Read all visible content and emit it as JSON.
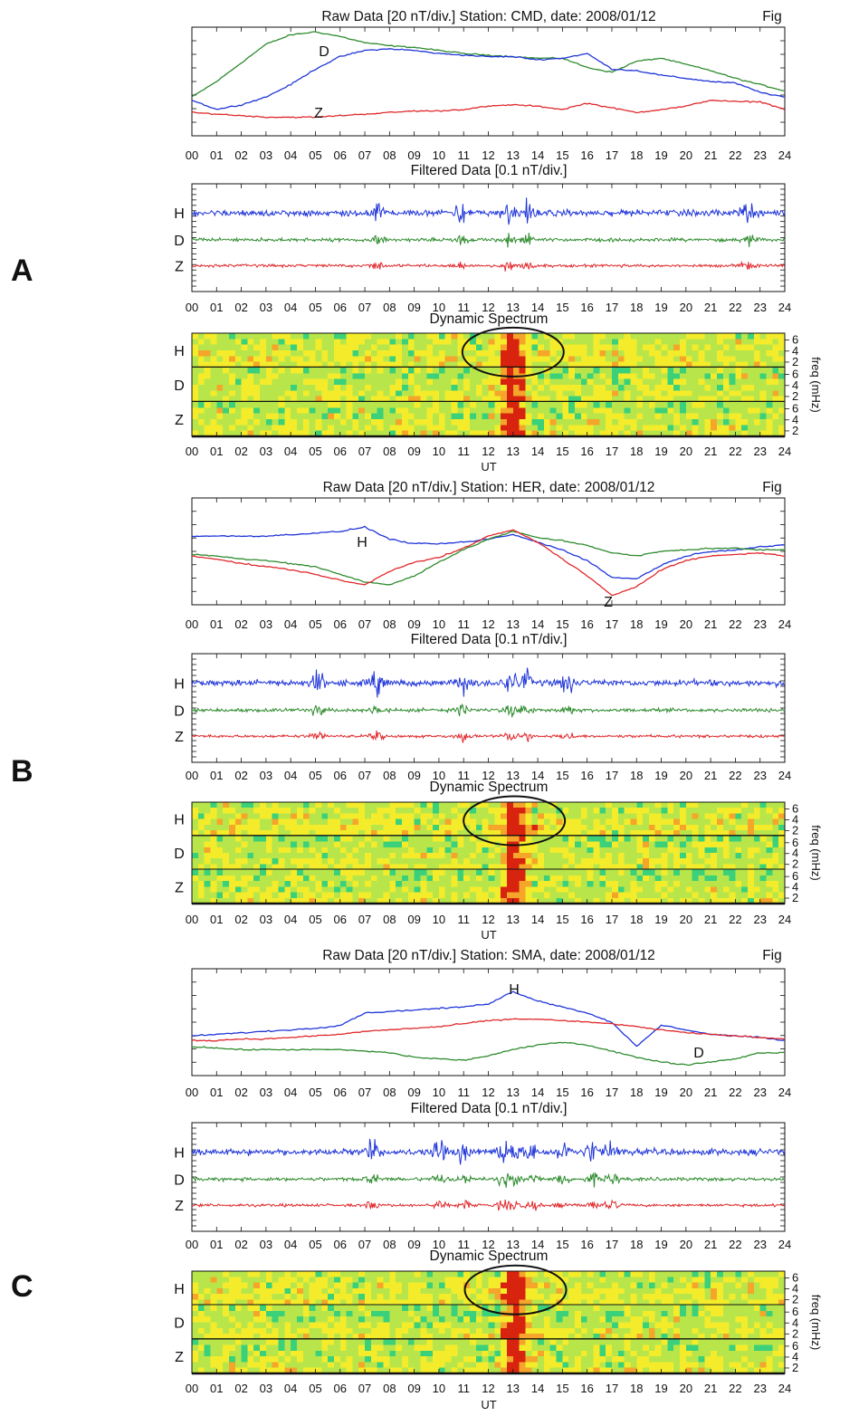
{
  "colors": {
    "H": "#1f35d8",
    "D": "#2e8b2e",
    "Z": "#e0282b",
    "spectrum_low": "#3ad17a",
    "spectrum_mid": "#f4ec2a",
    "spectrum_high": "#d8230f"
  },
  "chart_data": [
    {
      "panel": "A",
      "station": "CMD",
      "raw": {
        "type": "line",
        "title": "Raw Data [20 nT/div.] Station: CMD, date: 2008/01/12",
        "corner_text": "Fig",
        "x": [
          0,
          1,
          2,
          3,
          4,
          5,
          6,
          7,
          8,
          9,
          10,
          11,
          12,
          13,
          14,
          15,
          16,
          17,
          18,
          19,
          20,
          21,
          22,
          23,
          24
        ],
        "xlabels": [
          "00",
          "01",
          "02",
          "03",
          "04",
          "05",
          "06",
          "07",
          "08",
          "09",
          "10",
          "11",
          "12",
          "13",
          "14",
          "15",
          "16",
          "17",
          "18",
          "19",
          "20",
          "21",
          "22",
          "23",
          "24"
        ],
        "annotations": [
          {
            "text": "D",
            "series": "D"
          },
          {
            "text": "Z",
            "series": "Z"
          }
        ],
        "series": [
          {
            "key": "D",
            "values": [
              -1.0,
              0.0,
              1.2,
              2.4,
              3.0,
              3.2,
              2.9,
              2.5,
              2.3,
              2.2,
              2.0,
              1.8,
              1.7,
              1.6,
              1.5,
              1.5,
              0.9,
              0.6,
              1.3,
              1.5,
              1.1,
              0.7,
              0.2,
              -0.2,
              -0.6
            ]
          },
          {
            "key": "H",
            "values": [
              -1.2,
              -1.8,
              -1.5,
              -1.0,
              -0.2,
              0.8,
              1.6,
              2.0,
              2.1,
              2.0,
              1.8,
              1.7,
              1.6,
              1.6,
              1.4,
              1.5,
              1.8,
              0.8,
              0.7,
              0.4,
              0.2,
              0.0,
              -0.1,
              -0.7,
              -1.0
            ]
          },
          {
            "key": "Z",
            "values": [
              -2.0,
              -2.1,
              -2.2,
              -2.3,
              -2.3,
              -2.3,
              -2.2,
              -2.1,
              -2.0,
              -1.9,
              -1.9,
              -1.8,
              -1.6,
              -1.5,
              -1.6,
              -1.8,
              -1.4,
              -1.7,
              -2.0,
              -1.8,
              -1.6,
              -1.2,
              -1.3,
              -1.3,
              -1.8
            ]
          }
        ]
      },
      "filtered": {
        "type": "line",
        "title": "Filtered Data [0.1 nT/div.]",
        "channel_labels": [
          "H",
          "D",
          "Z"
        ],
        "activity_peaks_hours": [
          7.5,
          10.9,
          12.8,
          13.6,
          22.5
        ]
      },
      "spectrum": {
        "type": "heatmap",
        "title": "Dynamic Spectrum",
        "channel_labels": [
          "H",
          "D",
          "Z"
        ],
        "freq_ticks": [
          "6",
          "4",
          "2"
        ],
        "freq_label": "freq (mHz)",
        "xlabel": "UT",
        "highlight_hours": [
          12.8,
          13.2
        ]
      }
    },
    {
      "panel": "B",
      "station": "HER",
      "raw": {
        "type": "line",
        "title": "Raw Data [20 nT/div.] Station: HER, date: 2008/01/12",
        "corner_text": "Fig",
        "x": [
          0,
          1,
          2,
          3,
          4,
          5,
          6,
          7,
          8,
          9,
          10,
          11,
          12,
          13,
          14,
          15,
          16,
          17,
          18,
          19,
          20,
          21,
          22,
          23,
          24
        ],
        "xlabels": [
          "00",
          "01",
          "02",
          "03",
          "04",
          "05",
          "06",
          "07",
          "08",
          "09",
          "10",
          "11",
          "12",
          "13",
          "14",
          "15",
          "16",
          "17",
          "18",
          "19",
          "20",
          "21",
          "22",
          "23",
          "24"
        ],
        "annotations": [
          {
            "text": "H",
            "series": "H"
          },
          {
            "text": "Z",
            "series": "Z"
          }
        ],
        "series": [
          {
            "key": "H",
            "values": [
              1.0,
              1.0,
              1.0,
              1.0,
              1.1,
              1.2,
              1.3,
              1.6,
              0.8,
              0.5,
              0.5,
              0.6,
              0.8,
              1.1,
              0.6,
              0.1,
              -0.6,
              -1.7,
              -1.8,
              -0.9,
              -0.3,
              0.0,
              0.1,
              0.3,
              0.4
            ]
          },
          {
            "key": "D",
            "values": [
              -0.2,
              -0.3,
              -0.5,
              -0.6,
              -0.8,
              -1.0,
              -1.5,
              -2.0,
              -2.2,
              -1.6,
              -0.7,
              0.1,
              0.8,
              1.3,
              0.9,
              0.7,
              0.4,
              -0.1,
              -0.3,
              0.0,
              0.1,
              0.2,
              0.2,
              0.1,
              0.1
            ]
          },
          {
            "key": "Z",
            "values": [
              -0.3,
              -0.5,
              -0.8,
              -1.0,
              -1.2,
              -1.5,
              -1.9,
              -2.2,
              -1.3,
              -0.7,
              -0.4,
              0.2,
              1.0,
              1.4,
              0.6,
              -0.5,
              -1.6,
              -2.9,
              -2.3,
              -1.2,
              -0.6,
              -0.3,
              -0.2,
              -0.1,
              -0.3
            ]
          }
        ]
      },
      "filtered": {
        "type": "line",
        "title": "Filtered Data [0.1 nT/div.]",
        "channel_labels": [
          "H",
          "D",
          "Z"
        ],
        "activity_peaks_hours": [
          5.1,
          7.5,
          11.0,
          12.9,
          13.5,
          15.2
        ]
      },
      "spectrum": {
        "type": "heatmap",
        "title": "Dynamic Spectrum",
        "channel_labels": [
          "H",
          "D",
          "Z"
        ],
        "freq_ticks": [
          "6",
          "4",
          "2"
        ],
        "freq_label": "freq (mHz)",
        "xlabel": "UT",
        "highlight_hours": [
          12.8,
          13.3
        ]
      }
    },
    {
      "panel": "C",
      "station": "SMA",
      "raw": {
        "type": "line",
        "title": "Raw Data [20 nT/div.] Station: SMA, date: 2008/01/12",
        "corner_text": "Fig",
        "x": [
          0,
          1,
          2,
          3,
          4,
          5,
          6,
          7,
          8,
          9,
          10,
          11,
          12,
          13,
          14,
          15,
          16,
          17,
          18,
          19,
          20,
          21,
          22,
          23,
          24
        ],
        "xlabels": [
          "00",
          "01",
          "02",
          "03",
          "04",
          "05",
          "06",
          "07",
          "08",
          "09",
          "10",
          "11",
          "12",
          "13",
          "14",
          "15",
          "16",
          "17",
          "18",
          "19",
          "20",
          "21",
          "22",
          "23",
          "24"
        ],
        "annotations": [
          {
            "text": "H",
            "series": "H"
          },
          {
            "text": "D",
            "series": "D"
          }
        ],
        "series": [
          {
            "key": "H",
            "values": [
              -0.9,
              -0.8,
              -0.7,
              -0.6,
              -0.5,
              -0.4,
              -0.2,
              0.6,
              0.7,
              0.8,
              0.9,
              1.0,
              1.2,
              2.0,
              1.4,
              1.0,
              0.6,
              0.0,
              -1.6,
              -0.2,
              -0.5,
              -0.8,
              -0.9,
              -1.0,
              -1.2
            ]
          },
          {
            "key": "Z",
            "values": [
              -1.2,
              -1.2,
              -1.1,
              -1.1,
              -1.0,
              -0.9,
              -0.8,
              -0.6,
              -0.5,
              -0.4,
              -0.3,
              -0.1,
              0.1,
              0.2,
              0.2,
              0.1,
              0.0,
              -0.1,
              -0.3,
              -0.5,
              -0.7,
              -0.8,
              -0.9,
              -1.0,
              -1.1
            ]
          },
          {
            "key": "D",
            "values": [
              -1.6,
              -1.7,
              -1.8,
              -1.8,
              -1.8,
              -1.8,
              -1.8,
              -1.9,
              -2.0,
              -2.3,
              -2.4,
              -2.5,
              -2.2,
              -1.8,
              -1.5,
              -1.3,
              -1.5,
              -1.9,
              -2.3,
              -2.6,
              -2.8,
              -2.6,
              -2.4,
              -2.0,
              -2.0
            ]
          }
        ]
      },
      "filtered": {
        "type": "line",
        "title": "Filtered Data [0.1 nT/div.]",
        "channel_labels": [
          "H",
          "D",
          "Z"
        ],
        "activity_peaks_hours": [
          7.3,
          10.0,
          11.0,
          12.6,
          13.0,
          13.8,
          15.0,
          16.2,
          17.0
        ]
      },
      "spectrum": {
        "type": "heatmap",
        "title": "Dynamic Spectrum",
        "channel_labels": [
          "H",
          "D",
          "Z"
        ],
        "freq_ticks": [
          "6",
          "4",
          "2"
        ],
        "freq_label": "freq (mHz)",
        "xlabel": "UT",
        "highlight_hours": [
          12.9,
          13.3
        ]
      }
    }
  ]
}
